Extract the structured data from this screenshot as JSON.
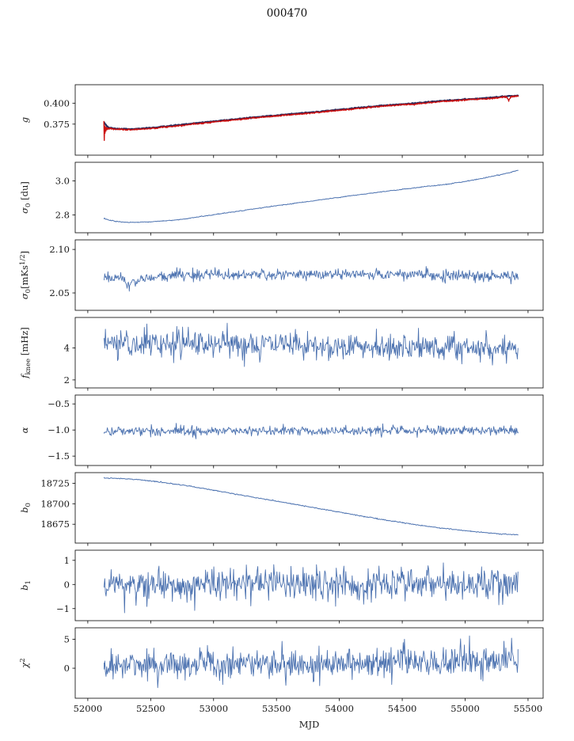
{
  "chart_data": {
    "type": "line",
    "title": "000470",
    "xlabel": "MJD",
    "xlim": [
      51900,
      55620
    ],
    "xticks": [
      52000,
      52500,
      53000,
      53500,
      54000,
      54500,
      55000,
      55500
    ],
    "x_range_data": [
      52130,
      55420
    ],
    "grid": false,
    "legend": "none",
    "colors": {
      "line_blue": "#4c72b0",
      "overlay_red": "#cc1111",
      "under_dark": "#2a2a5a",
      "axis": "#000000"
    },
    "panels": [
      {
        "id": "g",
        "ylabel_segments": [
          {
            "text": "g",
            "italic": true
          }
        ],
        "ylim": [
          0.338,
          0.422
        ],
        "yticks": [
          {
            "v": 0.375,
            "label": "0.375"
          },
          {
            "v": 0.4,
            "label": "0.400"
          }
        ],
        "series": [
          {
            "name": "g-underlying-dark",
            "color": "#2a2a5a",
            "width": 2.2,
            "seed": 3,
            "noise": 0.0003,
            "points": 500,
            "x_range": [
              52130,
              55420
            ],
            "keypoints": [
              [
                52130,
                0.3768
              ],
              [
                52160,
                0.3712
              ],
              [
                52200,
                0.37
              ],
              [
                52250,
                0.3695
              ],
              [
                52350,
                0.3692
              ],
              [
                52450,
                0.37
              ],
              [
                52600,
                0.3721
              ],
              [
                52800,
                0.3752
              ],
              [
                53000,
                0.3784
              ],
              [
                53200,
                0.3813
              ],
              [
                53400,
                0.3842
              ],
              [
                53600,
                0.3868
              ],
              [
                53800,
                0.3894
              ],
              [
                54000,
                0.3922
              ],
              [
                54200,
                0.3952
              ],
              [
                54400,
                0.3978
              ],
              [
                54600,
                0.3998
              ],
              [
                54800,
                0.4026
              ],
              [
                55000,
                0.4046
              ],
              [
                55100,
                0.4054
              ],
              [
                55250,
                0.407
              ],
              [
                55420,
                0.4093
              ]
            ]
          },
          {
            "name": "g-overlay-red",
            "color": "#cc1111",
            "width": 1.4,
            "seed": 7,
            "noise": 0.0004,
            "points": 900,
            "x_range": [
              52128,
              55420
            ],
            "keypoints": [
              [
                52128,
                0.377
              ],
              [
                52131,
                0.356
              ],
              [
                52134,
                0.373
              ],
              [
                52137,
                0.3645
              ],
              [
                52140,
                0.372
              ],
              [
                52144,
                0.3662
              ],
              [
                52148,
                0.3712
              ],
              [
                52152,
                0.3682
              ],
              [
                52158,
                0.3702
              ],
              [
                52166,
                0.3692
              ],
              [
                52176,
                0.37
              ],
              [
                52190,
                0.3694
              ],
              [
                52210,
                0.369
              ],
              [
                52250,
                0.3687
              ],
              [
                52300,
                0.3684
              ],
              [
                52350,
                0.3684
              ],
              [
                52420,
                0.369
              ],
              [
                52500,
                0.3698
              ],
              [
                52600,
                0.3713
              ],
              [
                52700,
                0.3728
              ],
              [
                52800,
                0.3744
              ],
              [
                52900,
                0.376
              ],
              [
                53000,
                0.3776
              ],
              [
                53100,
                0.3791
              ],
              [
                53200,
                0.3805
              ],
              [
                53300,
                0.382
              ],
              [
                53400,
                0.3834
              ],
              [
                53500,
                0.3847
              ],
              [
                53600,
                0.386
              ],
              [
                53700,
                0.3873
              ],
              [
                53800,
                0.3886
              ],
              [
                53900,
                0.39
              ],
              [
                54000,
                0.3914
              ],
              [
                54100,
                0.3929
              ],
              [
                54200,
                0.3944
              ],
              [
                54300,
                0.3958
              ],
              [
                54400,
                0.397
              ],
              [
                54500,
                0.398
              ],
              [
                54600,
                0.399
              ],
              [
                54700,
                0.4004
              ],
              [
                54800,
                0.4018
              ],
              [
                54900,
                0.4028
              ],
              [
                55000,
                0.4038
              ],
              [
                55100,
                0.4046
              ],
              [
                55180,
                0.4052
              ],
              [
                55250,
                0.4062
              ],
              [
                55300,
                0.407
              ],
              [
                55330,
                0.4073
              ],
              [
                55347,
                0.403
              ],
              [
                55362,
                0.4077
              ],
              [
                55395,
                0.4082
              ],
              [
                55420,
                0.4085
              ]
            ]
          }
        ]
      },
      {
        "id": "sigma0-du",
        "ylabel_segments": [
          {
            "text": "σ",
            "italic": true
          },
          {
            "text": "0",
            "sub": true
          },
          {
            "text": " [du]"
          }
        ],
        "ylim": [
          2.695,
          3.11
        ],
        "yticks": [
          {
            "v": 2.8,
            "label": "2.8"
          },
          {
            "v": 3.0,
            "label": "3.0"
          }
        ],
        "series": [
          {
            "name": "sigma0-du",
            "color": "#4c72b0",
            "width": 1.0,
            "seed": 13,
            "noise": 0.0012,
            "points": 600,
            "keypoints": [
              [
                52130,
                2.778
              ],
              [
                52180,
                2.768
              ],
              [
                52250,
                2.7595
              ],
              [
                52320,
                2.756
              ],
              [
                52400,
                2.756
              ],
              [
                52480,
                2.7585
              ],
              [
                52600,
                2.7645
              ],
              [
                52750,
                2.7735
              ],
              [
                52900,
                2.7905
              ],
              [
                53100,
                2.812
              ],
              [
                53300,
                2.833
              ],
              [
                53500,
                2.854
              ],
              [
                53700,
                2.874
              ],
              [
                53900,
                2.894
              ],
              [
                54100,
                2.9135
              ],
              [
                54300,
                2.9325
              ],
              [
                54500,
                2.9505
              ],
              [
                54700,
                2.968
              ],
              [
                54850,
                2.98
              ],
              [
                55000,
                2.997
              ],
              [
                55150,
                3.018
              ],
              [
                55300,
                3.04
              ],
              [
                55420,
                3.062
              ]
            ]
          }
        ]
      },
      {
        "id": "sigma0-mks",
        "ylabel_segments": [
          {
            "text": "σ",
            "italic": true
          },
          {
            "text": "0",
            "sub": true
          },
          {
            "text": "[mKs"
          },
          {
            "text": "1/2",
            "sup": true
          },
          {
            "text": "]"
          }
        ],
        "ylim": [
          2.03,
          2.111
        ],
        "yticks": [
          {
            "v": 2.05,
            "label": "2.05"
          },
          {
            "v": 2.1,
            "label": "2.10"
          }
        ],
        "series": [
          {
            "name": "sigma0-mks",
            "color": "#4c72b0",
            "width": 0.9,
            "seed": 21,
            "noise": 0.0033,
            "points": 650,
            "clip": [
              2.044,
              2.097
            ],
            "keypoints": [
              [
                52130,
                2.069
              ],
              [
                52250,
                2.066
              ],
              [
                52330,
                2.0595
              ],
              [
                52420,
                2.066
              ],
              [
                52700,
                2.0705
              ],
              [
                53500,
                2.0715
              ],
              [
                54500,
                2.071
              ],
              [
                55420,
                2.0695
              ]
            ]
          }
        ]
      },
      {
        "id": "fknee",
        "ylabel_segments": [
          {
            "text": "f",
            "italic": true
          },
          {
            "text": "knee",
            "sub": true
          },
          {
            "text": " [mHz]"
          }
        ],
        "ylim": [
          1.5,
          5.9
        ],
        "yticks": [
          {
            "v": 2,
            "label": "2"
          },
          {
            "v": 4,
            "label": "4"
          }
        ],
        "series": [
          {
            "name": "fknee",
            "color": "#4c72b0",
            "width": 0.9,
            "seed": 31,
            "noise": 0.42,
            "points": 650,
            "clip": [
              2.0,
              5.82
            ],
            "keypoints": [
              [
                52130,
                4.3
              ],
              [
                52700,
                4.27
              ],
              [
                53500,
                4.2
              ],
              [
                54300,
                4.1
              ],
              [
                55000,
                4.0
              ],
              [
                55420,
                3.92
              ]
            ]
          }
        ]
      },
      {
        "id": "alpha",
        "ylabel_segments": [
          {
            "text": "α",
            "italic": true
          }
        ],
        "ylim": [
          -1.68,
          -0.33
        ],
        "yticks": [
          {
            "v": -0.5,
            "label": "−0.5"
          },
          {
            "v": -1.0,
            "label": "−1.0"
          },
          {
            "v": -1.5,
            "label": "−1.5"
          }
        ],
        "series": [
          {
            "name": "alpha",
            "color": "#4c72b0",
            "width": 0.9,
            "seed": 41,
            "noise": 0.045,
            "points": 650,
            "clip": [
              -1.32,
              -0.62
            ],
            "keypoints": [
              [
                52130,
                -1.02
              ],
              [
                55420,
                -1.01
              ]
            ]
          }
        ]
      },
      {
        "id": "b0",
        "ylabel_segments": [
          {
            "text": "b",
            "italic": true
          },
          {
            "text": "0",
            "sub": true
          }
        ],
        "ylim": [
          18652,
          18738
        ],
        "yticks": [
          {
            "v": 18675,
            "label": "18675"
          },
          {
            "v": 18700,
            "label": "18700"
          },
          {
            "v": 18725,
            "label": "18725"
          }
        ],
        "series": [
          {
            "name": "b0",
            "color": "#4c72b0",
            "width": 1.0,
            "seed": 52,
            "noise": 0.3,
            "points": 600,
            "keypoints": [
              [
                52130,
                18731.5
              ],
              [
                52250,
                18731
              ],
              [
                52400,
                18729.5
              ],
              [
                52550,
                18727
              ],
              [
                52700,
                18724
              ],
              [
                52850,
                18720.5
              ],
              [
                53000,
                18716.5
              ],
              [
                53150,
                18712.5
              ],
              [
                53300,
                18708.5
              ],
              [
                53450,
                18704.5
              ],
              [
                53600,
                18700.5
              ],
              [
                53750,
                18696.5
              ],
              [
                53900,
                18692.5
              ],
              [
                54050,
                18688.5
              ],
              [
                54200,
                18684.5
              ],
              [
                54350,
                18680.5
              ],
              [
                54500,
                18677
              ],
              [
                54650,
                18673.5
              ],
              [
                54800,
                18670.5
              ],
              [
                54950,
                18668
              ],
              [
                55100,
                18665.5
              ],
              [
                55250,
                18663.5
              ],
              [
                55420,
                18662
              ]
            ]
          }
        ]
      },
      {
        "id": "b1",
        "ylabel_segments": [
          {
            "text": "b",
            "italic": true
          },
          {
            "text": "1",
            "sub": true
          }
        ],
        "ylim": [
          -1.5,
          1.42
        ],
        "yticks": [
          {
            "v": -1,
            "label": "−1"
          },
          {
            "v": 0,
            "label": "0"
          },
          {
            "v": 1,
            "label": "1"
          }
        ],
        "series": [
          {
            "name": "b1",
            "color": "#4c72b0",
            "width": 0.9,
            "seed": 61,
            "noise": 0.34,
            "points": 650,
            "clip": [
              -1.38,
              1.08
            ],
            "keypoints": [
              [
                52130,
                -0.02
              ],
              [
                55420,
                0.0
              ]
            ]
          }
        ]
      },
      {
        "id": "chi2",
        "ylabel_segments": [
          {
            "text": "χ",
            "italic": true
          },
          {
            "text": "2",
            "sup": true
          }
        ],
        "ylim": [
          -5.2,
          7.0
        ],
        "yticks": [
          {
            "v": 0,
            "label": "0"
          },
          {
            "v": 5,
            "label": "5"
          }
        ],
        "series": [
          {
            "name": "chi2",
            "color": "#4c72b0",
            "width": 0.9,
            "seed": 71,
            "noise": 1.3,
            "points": 650,
            "clip": [
              -3.8,
              6.3
            ],
            "keypoints": [
              [
                52130,
                0.4
              ],
              [
                53200,
                0.8
              ],
              [
                54500,
                1.0
              ],
              [
                55420,
                1.3
              ]
            ]
          }
        ]
      }
    ]
  }
}
